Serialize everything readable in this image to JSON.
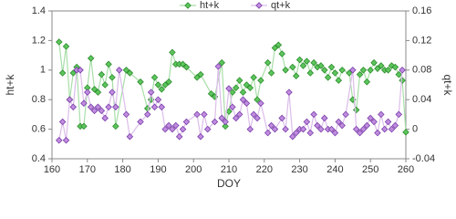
{
  "chart_data": {
    "type": "line",
    "x_label": "DOY",
    "y_label": "ht+k",
    "y2_label": "qt+k",
    "xlim": [
      160,
      260
    ],
    "xticks": [
      160,
      170,
      180,
      190,
      200,
      210,
      220,
      230,
      240,
      250,
      260
    ],
    "ylim": [
      0.4,
      1.4
    ],
    "yticks": [
      0.4,
      0.6,
      0.8,
      1,
      1.2,
      1.4
    ],
    "y2lim": [
      -0.04,
      0.16
    ],
    "y2ticks": [
      -0.04,
      0,
      0.04,
      0.08,
      0.12,
      0.16
    ],
    "legend": "top",
    "series": [
      {
        "name": "ht+k",
        "color": "#5cc65c",
        "marker_edge": "#2e8b2e",
        "line_color": "#a8dea8",
        "x": [
          162,
          163,
          164,
          165,
          166,
          167,
          168,
          169,
          170,
          171,
          172,
          173,
          174,
          175,
          176,
          177,
          178,
          181,
          182,
          185,
          187,
          188,
          189,
          190,
          191,
          192,
          193,
          194,
          195,
          196,
          197,
          198,
          201,
          202,
          205,
          206,
          208,
          209,
          210,
          211,
          212,
          213,
          214,
          215,
          216,
          217,
          218,
          219,
          221,
          222,
          223,
          224,
          225,
          226,
          228,
          229,
          230,
          231,
          232,
          233,
          234,
          235,
          236,
          237,
          238,
          239,
          240,
          241,
          242,
          244,
          245,
          246,
          247,
          248,
          249,
          250,
          251,
          252,
          253,
          254,
          255,
          256,
          257,
          258,
          259,
          260
        ],
        "values": [
          1.19,
          0.98,
          1.16,
          0.8,
          0.98,
          1.02,
          0.62,
          0.62,
          0.88,
          1.08,
          0.87,
          0.85,
          0.97,
          0.9,
          1.04,
          0.95,
          0.62,
          1.0,
          0.98,
          0.92,
          0.74,
          0.8,
          0.95,
          0.9,
          0.87,
          0.9,
          0.92,
          1.12,
          1.04,
          1.04,
          1.04,
          1.02,
          0.95,
          0.97,
          0.84,
          0.82,
          1.05,
          0.62,
          0.72,
          0.85,
          0.88,
          0.93,
          0.85,
          0.9,
          0.88,
          0.95,
          0.8,
          0.93,
          1.05,
          0.98,
          1.15,
          1.17,
          1.11,
          1.0,
          1.02,
          0.96,
          1.07,
          1.03,
          1.06,
          0.98,
          1.05,
          1.02,
          1.03,
          1.0,
          0.95,
          1.02,
          0.98,
          0.93,
          1.0,
          0.98,
          0.8,
          0.73,
          0.97,
          1.0,
          0.92,
          1.0,
          1.05,
          1.01,
          1.03,
          1.0,
          1.0,
          1.03,
          1.02,
          0.97,
          0.93,
          0.58
        ]
      },
      {
        "name": "qt+k",
        "axis": "y2",
        "color": "#c08de0",
        "marker_edge": "#7a3ea8",
        "line_color": "#dcbdea",
        "x": [
          162,
          163,
          164,
          165,
          166,
          167,
          168,
          169,
          170,
          171,
          172,
          173,
          174,
          175,
          176,
          177,
          178,
          179,
          181,
          182,
          185,
          187,
          188,
          189,
          190,
          191,
          192,
          193,
          194,
          195,
          196,
          197,
          198,
          201,
          202,
          203,
          204,
          206,
          207,
          208,
          209,
          210,
          211,
          212,
          213,
          214,
          215,
          216,
          217,
          218,
          219,
          221,
          222,
          223,
          225,
          226,
          227,
          228,
          229,
          230,
          231,
          232,
          233,
          234,
          235,
          236,
          237,
          238,
          239,
          240,
          241,
          242,
          243,
          245,
          246,
          247,
          248,
          249,
          250,
          251,
          252,
          253,
          254,
          255,
          256,
          257,
          258,
          259
        ],
        "values": [
          -0.015,
          0.01,
          -0.015,
          0.04,
          0.03,
          0.08,
          0.08,
          0.035,
          0.05,
          0.03,
          0.025,
          0.03,
          0.025,
          0.015,
          0.03,
          0.05,
          0.03,
          0.08,
          0.02,
          -0.01,
          0.01,
          0.02,
          0.05,
          0.03,
          0.04,
          0.03,
          0.0,
          0.005,
          0.0,
          0.005,
          -0.01,
          0.0,
          0.01,
          0.02,
          -0.01,
          0.02,
          0.0,
          0.01,
          0.085,
          0.015,
          0.01,
          0.055,
          0.03,
          0.015,
          0.02,
          0.04,
          0.035,
          0.0,
          0.02,
          0.015,
          0.035,
          -0.005,
          0.005,
          0.0,
          0.015,
          0.0,
          0.05,
          -0.01,
          -0.005,
          0.0,
          0.0,
          0.01,
          -0.005,
          0.02,
          0.005,
          0.0,
          0.015,
          0.0,
          0.0,
          -0.005,
          0.01,
          0.005,
          0.02,
          0.08,
          0.0,
          -0.005,
          0.0,
          0.005,
          0.015,
          0.01,
          -0.005,
          0.02,
          0.0,
          0.01,
          0.0,
          0.005,
          0.02,
          0.08
        ]
      }
    ]
  }
}
